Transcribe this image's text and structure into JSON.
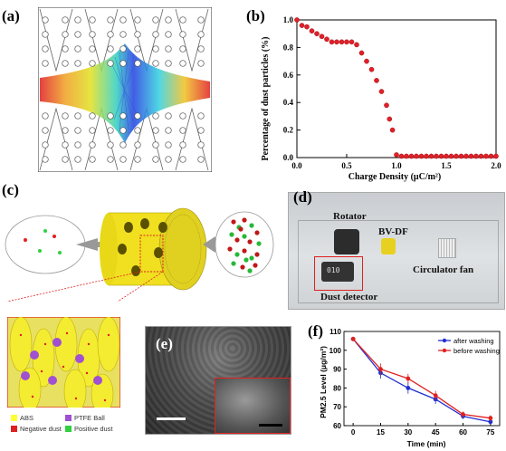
{
  "panels": {
    "a": "(a)",
    "b": "(b)",
    "c": "(c)",
    "d": "(d)",
    "e": "(e)",
    "f": "(f)"
  },
  "panel_d": {
    "rotator": "Rotator",
    "bvdf": "BV-DF",
    "fan": "Circulator fan",
    "detector": "Dust detector",
    "screen_value": "010"
  },
  "legend_c": [
    {
      "label": "ABS",
      "color": "#ffff33"
    },
    {
      "label": "PTFE Ball",
      "color": "#a050d0"
    },
    {
      "label": "Negative dust",
      "color": "#e02020"
    },
    {
      "label": "Positive dust",
      "color": "#30d040"
    }
  ],
  "chart_data": [
    {
      "type": "scatter",
      "panel": "b",
      "xlabel": "Charge Density (μC/m²)",
      "ylabel": "Percentage of dust particles (%)",
      "xlim": [
        0.0,
        2.0
      ],
      "ylim": [
        0.0,
        1.0
      ],
      "xticks": [
        "0.0",
        "0.5",
        "1.0",
        "1.5",
        "2.0"
      ],
      "yticks": [
        "0.0",
        "0.2",
        "0.4",
        "0.6",
        "0.8",
        "1.0"
      ],
      "grid": false,
      "color": "#e0202a",
      "x": [
        0.0,
        0.05,
        0.1,
        0.15,
        0.2,
        0.25,
        0.3,
        0.35,
        0.4,
        0.45,
        0.5,
        0.55,
        0.6,
        0.65,
        0.7,
        0.75,
        0.8,
        0.85,
        0.9,
        0.93,
        0.96,
        1.0,
        1.05,
        1.1,
        1.15,
        1.2,
        1.25,
        1.3,
        1.35,
        1.4,
        1.45,
        1.5,
        1.55,
        1.6,
        1.65,
        1.7,
        1.75,
        1.8,
        1.85,
        1.9,
        1.95,
        2.0
      ],
      "y": [
        1.0,
        0.96,
        0.95,
        0.92,
        0.9,
        0.88,
        0.86,
        0.84,
        0.84,
        0.84,
        0.84,
        0.84,
        0.82,
        0.76,
        0.7,
        0.64,
        0.56,
        0.48,
        0.38,
        0.28,
        0.2,
        0.02,
        0.01,
        0.01,
        0.01,
        0.01,
        0.01,
        0.01,
        0.01,
        0.01,
        0.01,
        0.01,
        0.01,
        0.01,
        0.01,
        0.01,
        0.01,
        0.01,
        0.01,
        0.01,
        0.01,
        0.01
      ]
    },
    {
      "type": "line",
      "panel": "f",
      "xlabel": "Time (min)",
      "ylabel": "PM2.5 Level (μg/m³)",
      "x": [
        0,
        15,
        30,
        45,
        60,
        75
      ],
      "xlim": [
        -5,
        80
      ],
      "ylim": [
        60,
        110
      ],
      "yticks": [
        "60",
        "70",
        "80",
        "90",
        "100",
        "110"
      ],
      "xticks": [
        "0",
        "15",
        "30",
        "45",
        "60",
        "75"
      ],
      "legend_position": "top-right",
      "series": [
        {
          "name": "after washing",
          "color": "#2030d0",
          "values": [
            106,
            88,
            80,
            74,
            65,
            62
          ],
          "errors": [
            0,
            3,
            3,
            2.5,
            1.5,
            1.5
          ]
        },
        {
          "name": "before washing",
          "color": "#e02020",
          "values": [
            106,
            90,
            85,
            76,
            66,
            64
          ],
          "errors": [
            0,
            3,
            2.5,
            2.5,
            1.5,
            1.5
          ]
        }
      ]
    }
  ]
}
